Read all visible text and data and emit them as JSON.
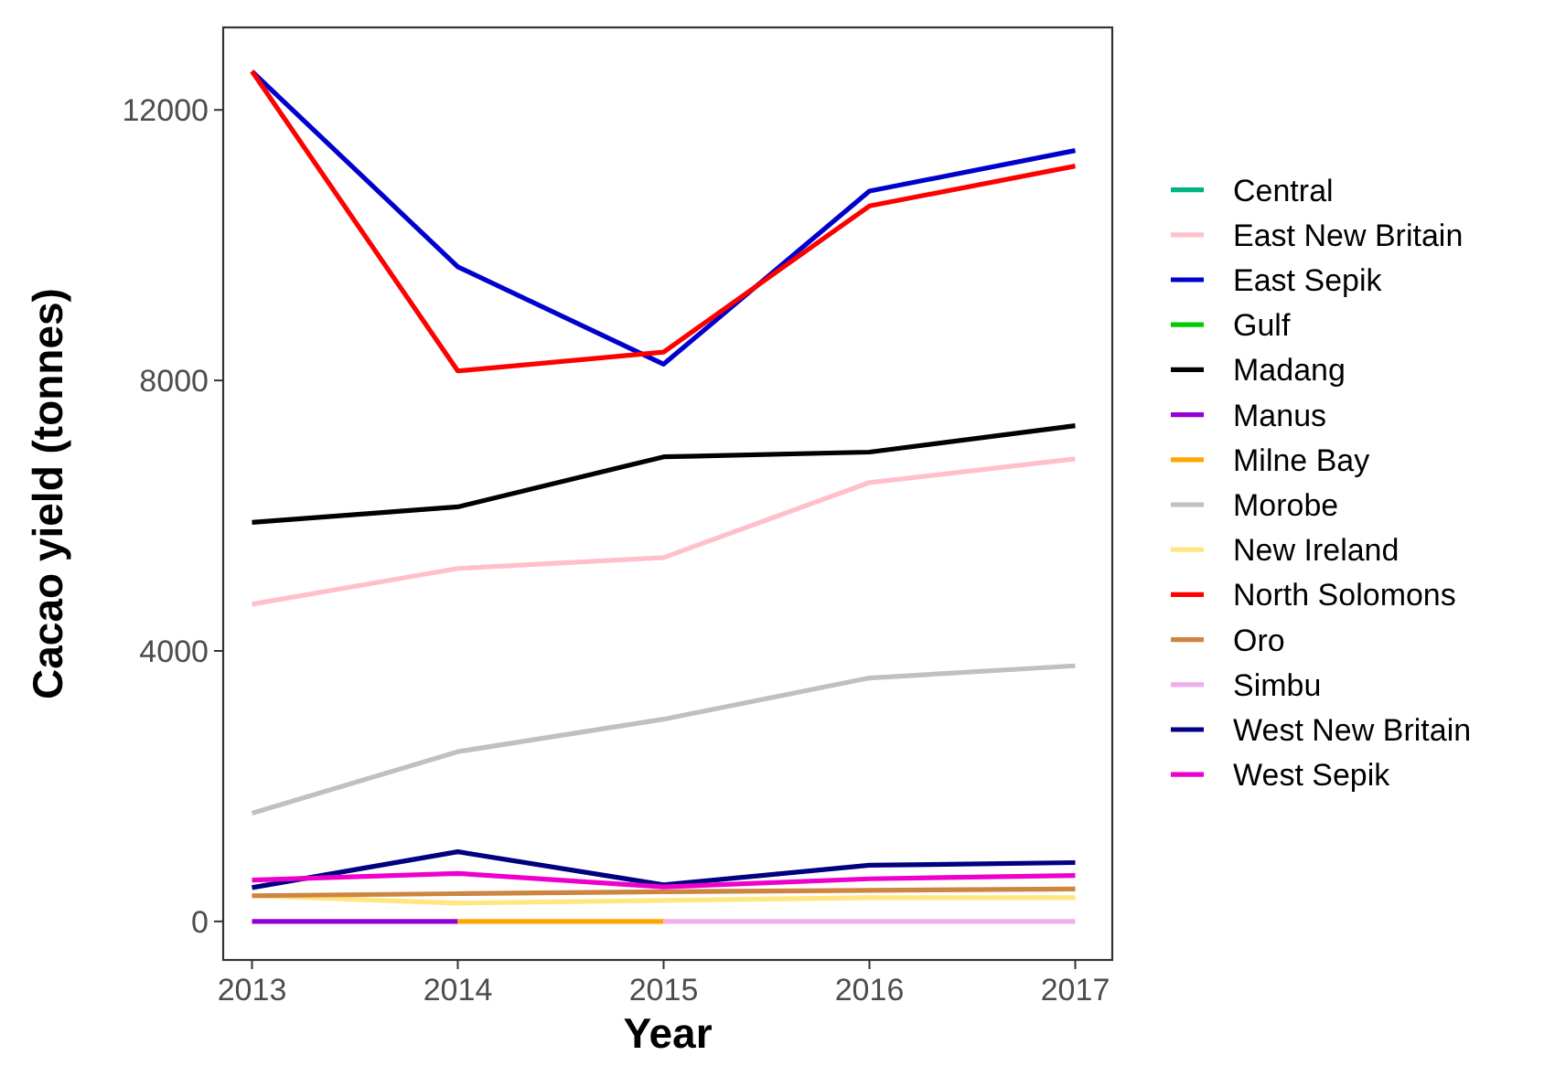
{
  "chart_data": {
    "type": "line",
    "xlabel": "Year",
    "ylabel": "Cacao yield (tonnes)",
    "x": [
      2013,
      2014,
      2015,
      2016,
      2017
    ],
    "xlim": [
      2012.86,
      2017.18
    ],
    "xticks": [
      2013,
      2014,
      2015,
      2016,
      2017
    ],
    "ylim": [
      -570,
      13220
    ],
    "yticks": [
      0,
      4000,
      8000,
      12000
    ],
    "grid": false,
    "legend": "right",
    "line_style": "solid",
    "series": [
      {
        "name": "Central",
        "color": "#00b27f",
        "values": [
          null,
          null,
          null,
          null,
          null
        ]
      },
      {
        "name": "East New Britain",
        "color": "#ffc0cb",
        "values": [
          4690,
          5220,
          5380,
          6490,
          6840
        ]
      },
      {
        "name": "East Sepik",
        "color": "#0000cd",
        "values": [
          12570,
          9680,
          8240,
          10800,
          11400
        ]
      },
      {
        "name": "Gulf",
        "color": "#00cd00",
        "values": [
          null,
          null,
          null,
          null,
          null
        ]
      },
      {
        "name": "Madang",
        "color": "#000000",
        "values": [
          5900,
          6130,
          6870,
          6940,
          7330
        ]
      },
      {
        "name": "Manus",
        "color": "#9400d3",
        "values": [
          0,
          0,
          null,
          null,
          null
        ]
      },
      {
        "name": "Milne Bay",
        "color": "#ffa500",
        "values": [
          null,
          0,
          0,
          null,
          null
        ]
      },
      {
        "name": "Morobe",
        "color": "#c0c0c0",
        "values": [
          1600,
          2510,
          2990,
          3600,
          3780
        ]
      },
      {
        "name": "New Ireland",
        "color": "#ffe680",
        "values": [
          380,
          270,
          310,
          350,
          350
        ]
      },
      {
        "name": "North Solomons",
        "color": "#ff0000",
        "values": [
          12570,
          8140,
          8420,
          10580,
          11170
        ]
      },
      {
        "name": "Oro",
        "color": "#cd853f",
        "values": [
          380,
          410,
          440,
          460,
          480
        ]
      },
      {
        "name": "Simbu",
        "color": "#eeaeee",
        "values": [
          null,
          null,
          0,
          0,
          0
        ]
      },
      {
        "name": "West New Britain",
        "color": "#000080",
        "values": [
          500,
          1030,
          540,
          830,
          870
        ]
      },
      {
        "name": "West Sepik",
        "color": "#ee00cc",
        "values": [
          610,
          710,
          510,
          630,
          680
        ]
      }
    ]
  }
}
